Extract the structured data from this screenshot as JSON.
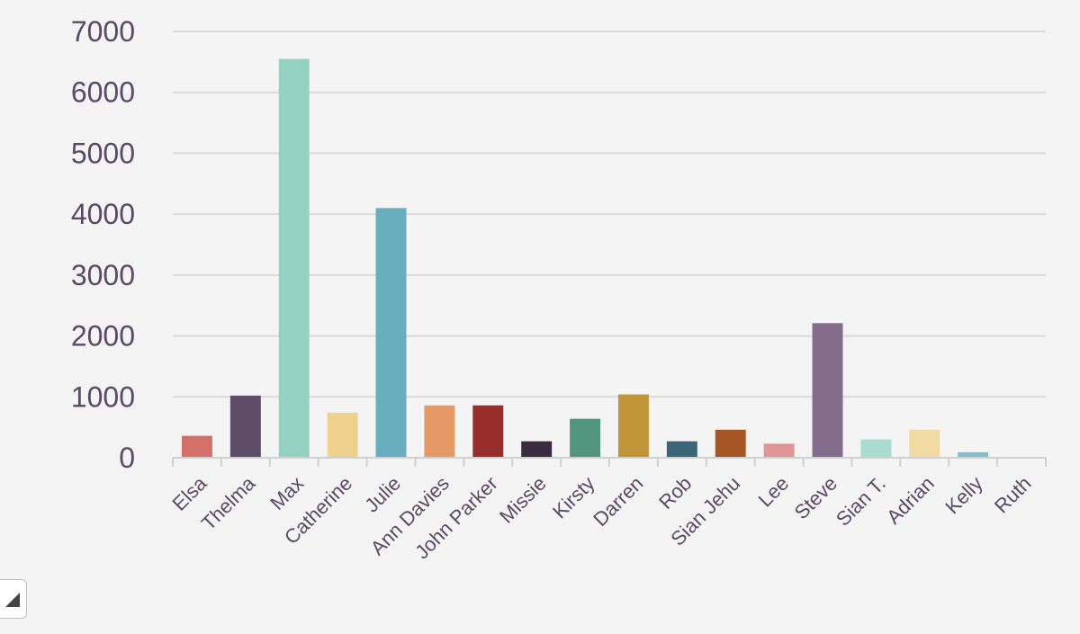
{
  "chart_data": {
    "type": "bar",
    "title": "",
    "xlabel": "",
    "ylabel": "",
    "ylim": [
      0,
      7000
    ],
    "yticks": [
      0,
      1000,
      2000,
      3000,
      4000,
      5000,
      6000,
      7000
    ],
    "grid": true,
    "legend": "none",
    "categories": [
      "Elsa",
      "Thelma",
      "Max",
      "Catherine",
      "Julie",
      "Ann Davies",
      "John Parker",
      "Missie",
      "Kirsty",
      "Darren",
      "Rob",
      "Sian Jehu",
      "Lee",
      "Steve",
      "Sian T.",
      "Adrian",
      "Kelly",
      "Ruth"
    ],
    "values": [
      360,
      1020,
      6550,
      740,
      4100,
      860,
      860,
      270,
      640,
      1040,
      270,
      460,
      230,
      2210,
      300,
      460,
      90,
      0
    ],
    "colors": [
      "#d4706a",
      "#5e4b66",
      "#94d1c0",
      "#efd18d",
      "#68aebf",
      "#e59966",
      "#982d2b",
      "#3a2c40",
      "#52957f",
      "#c29538",
      "#3b6678",
      "#a65525",
      "#df9593",
      "#846d8c",
      "#a8dccf",
      "#f1dba3",
      "#7fc0cf",
      "#f4f4f4"
    ]
  },
  "ui": {
    "resize_handle_icon": "triangle-corner-icon"
  }
}
